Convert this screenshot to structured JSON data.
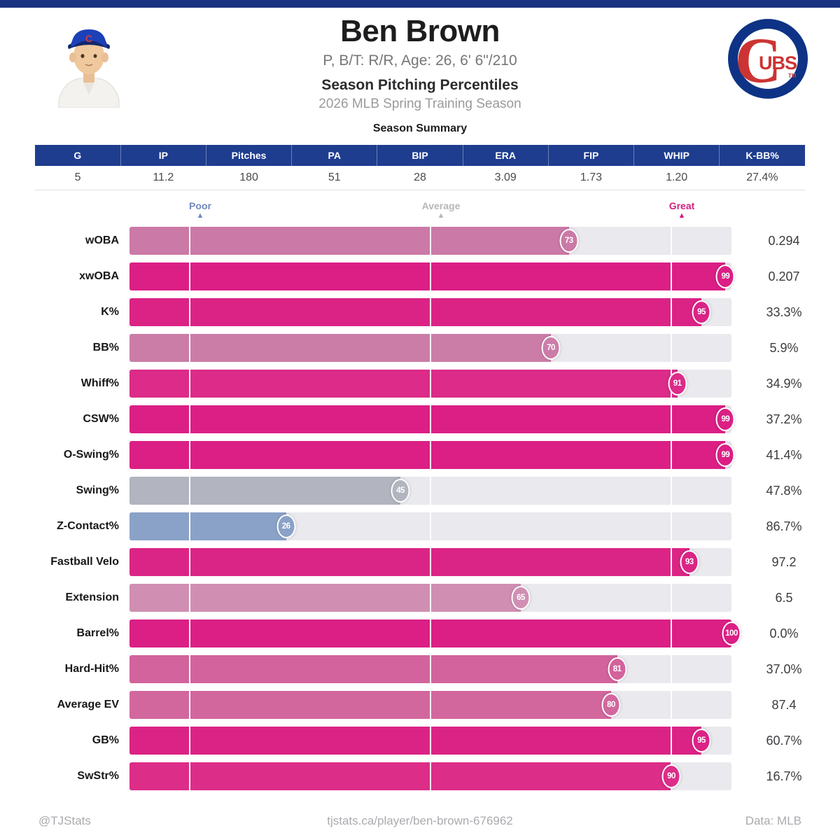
{
  "header": {
    "player_name": "Ben Brown",
    "player_bio": "P, B/T: R/R, Age: 26, 6' 6\"/210",
    "section_title": "Season Pitching Percentiles",
    "season_subtitle": "2026 MLB Spring Training Season",
    "team": "Chicago Cubs",
    "logo_letter_c": "C",
    "logo_letters_ubs": "UBS",
    "logo_tm": "TM"
  },
  "summary": {
    "title": "Season Summary",
    "columns": [
      "G",
      "IP",
      "Pitches",
      "PA",
      "BIP",
      "ERA",
      "FIP",
      "WHIP",
      "K-BB%"
    ],
    "values": [
      "5",
      "11.2",
      "180",
      "51",
      "28",
      "3.09",
      "1.73",
      "1.20",
      "27.4%"
    ]
  },
  "chart_data": {
    "type": "bar",
    "title": "Season Pitching Percentiles",
    "xlabel": "Percentile",
    "xlim": [
      0,
      100
    ],
    "grid": "white vertical lines at 10 / 50 / 90",
    "legend_position": "top markers",
    "track_color": "#e9e9ee",
    "gridlines": [
      10,
      50,
      90
    ],
    "scale_markers": [
      {
        "label": "Poor",
        "position": 10,
        "color": "#7189bd"
      },
      {
        "label": "Average",
        "position": 50,
        "color": "#b6b6ba"
      },
      {
        "label": "Great",
        "position": 90,
        "color": "#d31d7f"
      }
    ],
    "categories": [
      "wOBA",
      "xwOBA",
      "K%",
      "BB%",
      "Whiff%",
      "CSW%",
      "O-Swing%",
      "Swing%",
      "Z-Contact%",
      "Fastball Velo",
      "Extension",
      "Barrel%",
      "Hard-Hit%",
      "Average EV",
      "GB%",
      "SwStr%"
    ],
    "rows": [
      {
        "label": "wOBA",
        "percentile": 73,
        "value": "0.294",
        "color": "#cb79a6"
      },
      {
        "label": "xwOBA",
        "percentile": 99,
        "value": "0.207",
        "color": "#db1f85"
      },
      {
        "label": "K%",
        "percentile": 95,
        "value": "33.3%",
        "color": "#db2386"
      },
      {
        "label": "BB%",
        "percentile": 70,
        "value": "5.9%",
        "color": "#cb7da8"
      },
      {
        "label": "Whiff%",
        "percentile": 91,
        "value": "34.9%",
        "color": "#dc2b88"
      },
      {
        "label": "CSW%",
        "percentile": 99,
        "value": "37.2%",
        "color": "#db1f85"
      },
      {
        "label": "O-Swing%",
        "percentile": 99,
        "value": "41.4%",
        "color": "#db1f85"
      },
      {
        "label": "Swing%",
        "percentile": 45,
        "value": "47.8%",
        "color": "#b2b4bf"
      },
      {
        "label": "Z-Contact%",
        "percentile": 26,
        "value": "86.7%",
        "color": "#8ba2c8"
      },
      {
        "label": "Fastball Velo",
        "percentile": 93,
        "value": "97.2",
        "color": "#db2586"
      },
      {
        "label": "Extension",
        "percentile": 65,
        "value": "6.5",
        "color": "#d08fb2"
      },
      {
        "label": "Barrel%",
        "percentile": 100,
        "value": "0.0%",
        "color": "#db1f85"
      },
      {
        "label": "Hard-Hit%",
        "percentile": 81,
        "value": "37.0%",
        "color": "#d2639c"
      },
      {
        "label": "Average EV",
        "percentile": 80,
        "value": "87.4",
        "color": "#d2679e"
      },
      {
        "label": "GB%",
        "percentile": 95,
        "value": "60.7%",
        "color": "#db2386"
      },
      {
        "label": "SwStr%",
        "percentile": 90,
        "value": "16.7%",
        "color": "#dc2d89"
      }
    ]
  },
  "footer": {
    "left": "@TJStats",
    "center": "tjstats.ca/player/ben-brown-676962",
    "right": "Data: MLB"
  },
  "colors": {
    "top_bar": "#1a3380",
    "table_header": "#1e3d8f",
    "accent_high": "#db1f85",
    "accent_low": "#8ba2c8",
    "accent_neutral": "#b2b4bf",
    "cubs_blue": "#0e3386",
    "cubs_red": "#cc3433"
  }
}
